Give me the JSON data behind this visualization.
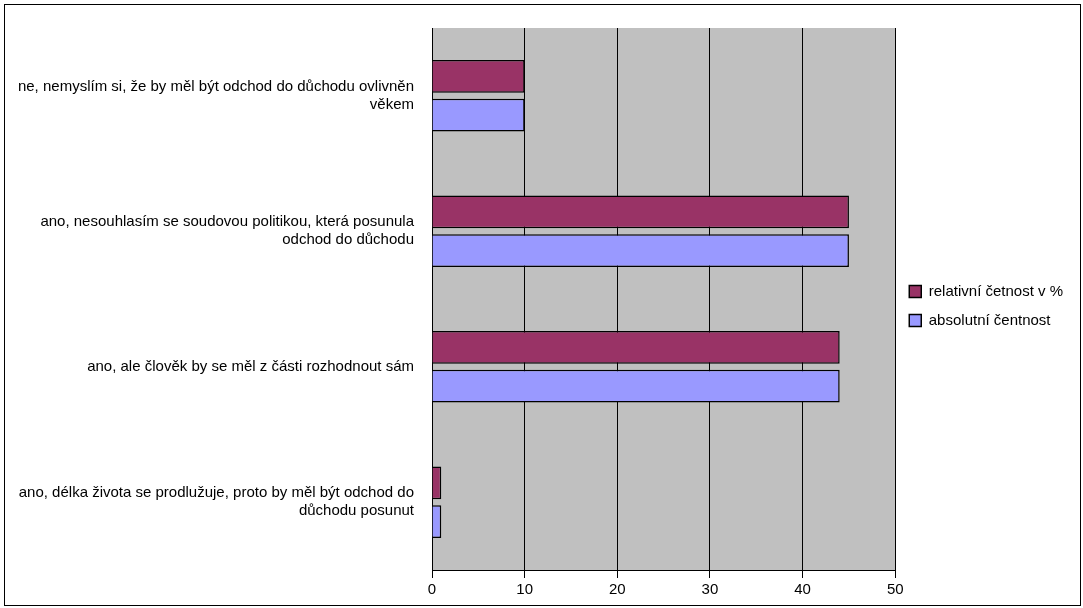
{
  "chart_data": {
    "type": "bar",
    "orientation": "horizontal",
    "categories": [
      "ne, nemyslím si, že by měl být odchod do důchodu ovlivněn věkem",
      "ano, nesouhlasím se soudovou politikou, která posunula odchod do důchodu",
      "ano, ale člověk by se měl z části rozhodnout sám",
      "ano, délka života se prodlužuje, proto by měl být odchod do důchodu posunut"
    ],
    "series": [
      {
        "name": "relativní četnost v %",
        "color": "#993366",
        "values": [
          10,
          45,
          44,
          1
        ]
      },
      {
        "name": "absolutní čentnost",
        "color": "#9999ff",
        "values": [
          10,
          45,
          44,
          1
        ]
      }
    ],
    "xlim": [
      0,
      50
    ],
    "xticks": [
      0,
      10,
      20,
      30,
      40,
      50
    ],
    "grid": "x",
    "legend": "right"
  }
}
